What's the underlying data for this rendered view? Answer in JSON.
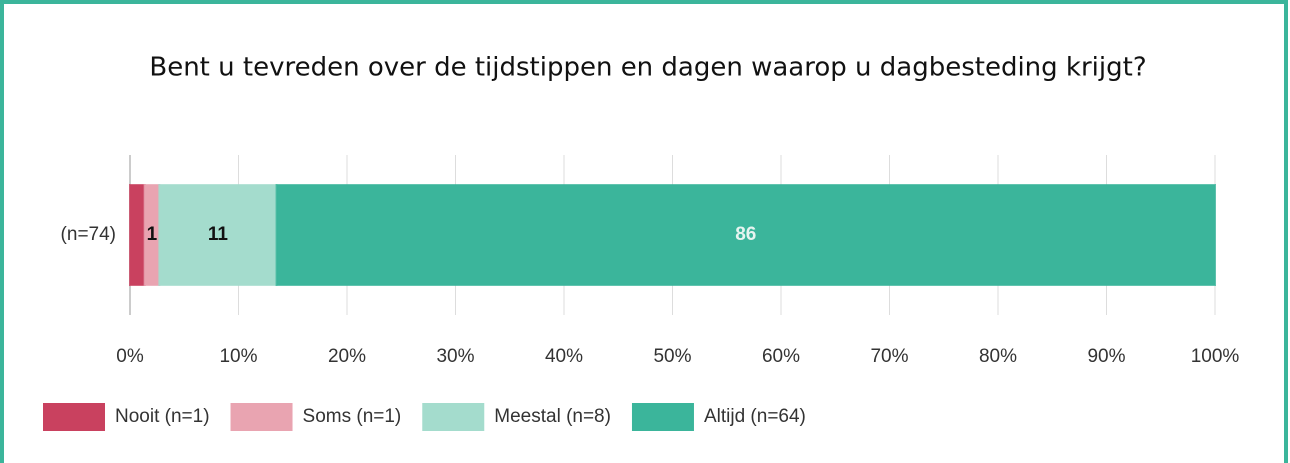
{
  "chart_data": {
    "type": "stacked-barh",
    "title": "Bent u tevreden over de tijdstippen en dagen waarop u dagbesteding krijgt?",
    "categories": [
      "(n=74)"
    ],
    "series": [
      {
        "name": "Nooit (n=1)",
        "color": "#c9415f",
        "values": [
          1.35
        ]
      },
      {
        "name": "Soms (n=1)",
        "color": "#e9a4b1",
        "values": [
          1.35
        ],
        "value_labels": [
          "1"
        ]
      },
      {
        "name": "Meestal (n=8)",
        "color": "#a4dccd",
        "values": [
          10.81
        ],
        "value_labels": [
          "11"
        ]
      },
      {
        "name": "Altijd (n=64)",
        "color": "#3bb59b",
        "values": [
          86.49
        ],
        "value_labels": [
          "86"
        ]
      }
    ],
    "xlim": [
      0,
      100
    ],
    "xticks": [
      {
        "value": 0,
        "label": "0%"
      },
      {
        "value": 10,
        "label": "10%"
      },
      {
        "value": 20,
        "label": "20%"
      },
      {
        "value": 30,
        "label": "30%"
      },
      {
        "value": 40,
        "label": "40%"
      },
      {
        "value": 50,
        "label": "50%"
      },
      {
        "value": 60,
        "label": "60%"
      },
      {
        "value": 70,
        "label": "70%"
      },
      {
        "value": 80,
        "label": "80%"
      },
      {
        "value": 90,
        "label": "90%"
      },
      {
        "value": 100,
        "label": "100%"
      }
    ],
    "grid": true
  }
}
